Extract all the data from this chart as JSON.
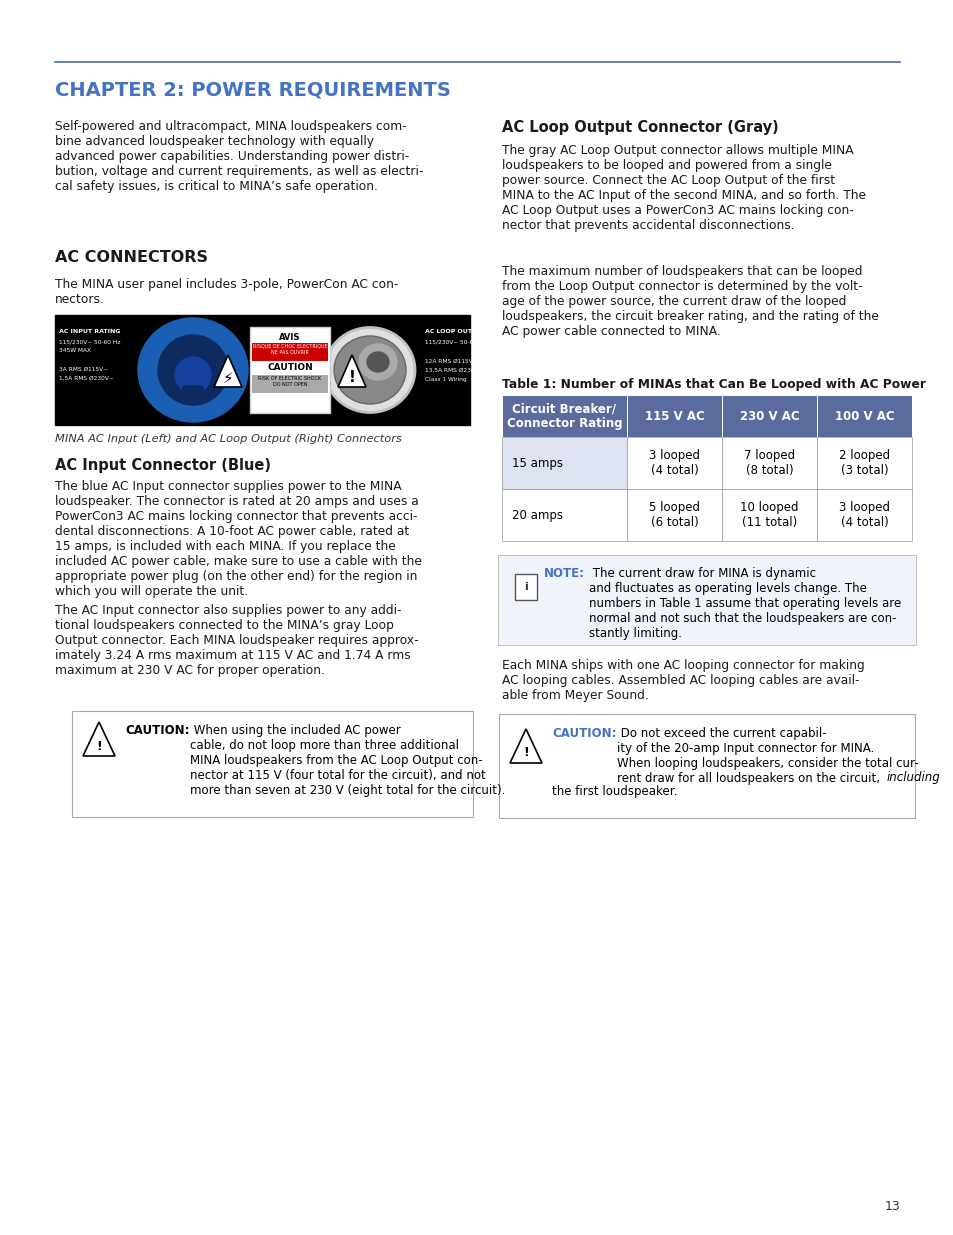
{
  "page_bg": "#ffffff",
  "top_line_color": "#4a6fa5",
  "chapter_title": "CHAPTER 2: POWER REQUIREMENTS",
  "chapter_title_color": "#4472c4",
  "intro_text": "Self-powered and ultracompact, MINA loudspeakers com-\nbine advanced loudspeaker technology with equally\nadvanced power capabilities. Understanding power distri-\nbution, voltage and current requirements, as well as electri-\ncal safety issues, is critical to MINA’s safe operation.",
  "ac_connectors_heading": "AC CONNECTORS",
  "ac_connectors_intro": "The MINA user panel includes 3-pole, PowerCon AC con-\nnectors.",
  "image_caption": "MINA AC Input (Left) and AC Loop Output (Right) Connectors",
  "ac_input_heading": "AC Input Connector (Blue)",
  "ac_input_para1": "The blue AC Input connector supplies power to the MINA\nloudspeaker. The connector is rated at 20 amps and uses a\nPowerCon3 AC mains locking connector that prevents acci-\ndental disconnections. A 10-foot AC power cable, rated at\n15 amps, is included with each MINA. If you replace the\nincluded AC power cable, make sure to use a cable with the\nappropriate power plug (on the other end) for the region in\nwhich you will operate the unit.",
  "ac_input_para2": "The AC Input connector also supplies power to any addi-\ntional loudspeakers connected to the MINA’s gray Loop\nOutput connector. Each MINA loudspeaker requires approx-\nimately 3.24 A rms maximum at 115 V AC and 1.74 A rms\nmaximum at 230 V AC for proper operation.",
  "ac_loop_heading": "AC Loop Output Connector (Gray)",
  "ac_loop_para1": "The gray AC Loop Output connector allows multiple MINA\nloudspeakers to be looped and powered from a single\npower source. Connect the AC Loop Output of the first\nMINA to the AC Input of the second MINA, and so forth. The\nAC Loop Output uses a PowerCon3 AC mains locking con-\nnector that prevents accidental disconnections.",
  "ac_loop_para2": "The maximum number of loudspeakers that can be looped\nfrom the Loop Output connector is determined by the volt-\nage of the power source, the current draw of the looped\nloudspeakers, the circuit breaker rating, and the rating of the\nAC power cable connected to MINA.",
  "table_title": "Table 1: Number of MINAs that Can Be Looped with AC Power",
  "table_header_bg": "#5a6b9e",
  "table_headers": [
    "Circuit Breaker/\nConnector Rating",
    "115 V AC",
    "230 V AC",
    "100 V AC"
  ],
  "table_row1": [
    "15 amps",
    "3 looped\n(4 total)",
    "7 looped\n(8 total)",
    "2 looped\n(3 total)"
  ],
  "table_row2": [
    "20 amps",
    "5 looped\n(6 total)",
    "10 looped\n(11 total)",
    "3 looped\n(4 total)"
  ],
  "note_color": "#4472c4",
  "note_text_bold": "NOTE:",
  "note_text_rest": " The current draw for MINA is dynamic\nand fluctuates as operating levels change. The\nnumbers in Table 1 assume that operating levels are\nnormal and not such that the loudspeakers are con-\nstantly limiting.",
  "loop_para3": "Each MINA ships with one AC looping connector for making\nAC looping cables. Assembled AC looping cables are avail-\nable from Meyer Sound.",
  "caution1_bold": "CAUTION:",
  "caution1_rest": " When using the included AC power\ncable, do not loop more than three additional\nMINA loudspeakers from the AC Loop Output con-\nnector at 115 V (four total for the circuit), and not\nmore than seven at 230 V (eight total for the circuit).",
  "caution2_bold": "CAUTION:",
  "caution2_rest": " Do not exceed the current capabil-\nity of the 20-amp Input connector for MINA.\nWhen looping loudspeakers, consider the total cur-\nrent draw for all loudspeakers on the circuit, ",
  "caution2_italic": "including",
  "caution2_end": "\nthe first loudspeaker.",
  "page_number": "13"
}
